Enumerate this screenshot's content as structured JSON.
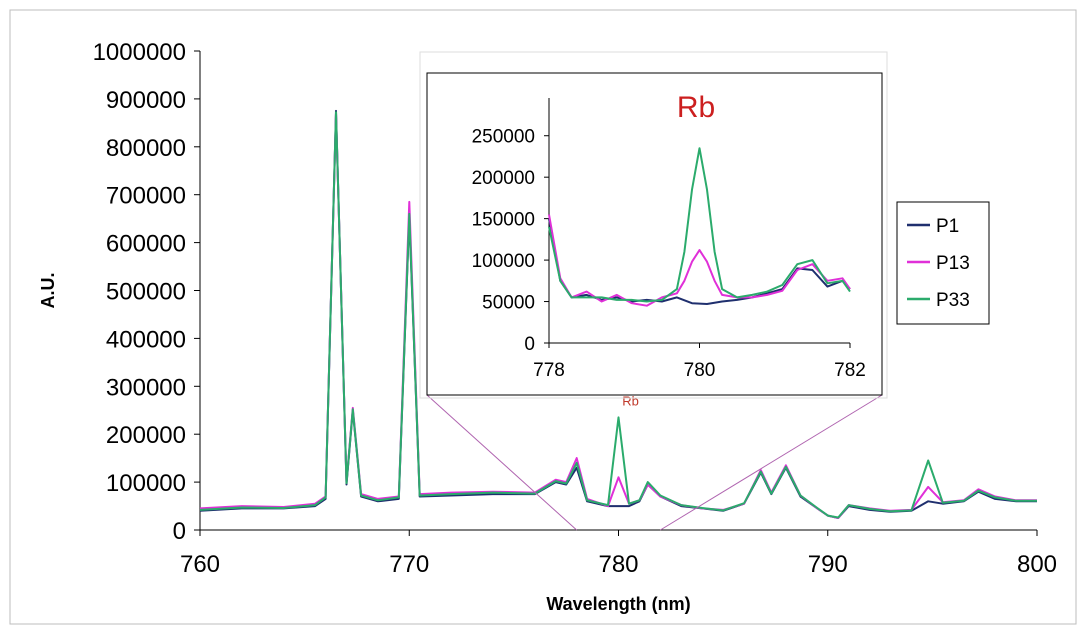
{
  "chart_data": [
    {
      "type": "line",
      "title": "",
      "xlabel": "Wavelength (nm)",
      "ylabel": "A.U.",
      "xlim": [
        760,
        800
      ],
      "ylim": [
        0,
        1000000
      ],
      "x_ticks": [
        760,
        770,
        780,
        790,
        800
      ],
      "y_ticks": [
        0,
        100000,
        200000,
        300000,
        400000,
        500000,
        600000,
        700000,
        800000,
        900000,
        1000000
      ],
      "annotation": "Rb",
      "legend": {
        "position": "right",
        "entries": [
          "P1",
          "P13",
          "P33"
        ]
      },
      "series": [
        {
          "name": "P1",
          "color": "#1f2f6e",
          "x": [
            760,
            762,
            764,
            765.5,
            766,
            766.5,
            767,
            767.3,
            767.7,
            768.5,
            769.5,
            770,
            770.5,
            772,
            774,
            776,
            777,
            777.5,
            778,
            778.5,
            779.5,
            780,
            780.5,
            781,
            781.4,
            782,
            783,
            784,
            785,
            786,
            786.8,
            787.3,
            788,
            788.7,
            789.5,
            790,
            790.5,
            791,
            792,
            793,
            794,
            794.8,
            795.5,
            796.5,
            797.2,
            798,
            799,
            800
          ],
          "values": [
            40000,
            45000,
            45000,
            50000,
            65000,
            875000,
            95000,
            250000,
            70000,
            60000,
            65000,
            655000,
            70000,
            72000,
            75000,
            75000,
            100000,
            95000,
            130000,
            60000,
            50000,
            50000,
            50000,
            60000,
            95000,
            70000,
            50000,
            45000,
            40000,
            55000,
            120000,
            75000,
            130000,
            70000,
            45000,
            30000,
            25000,
            50000,
            42000,
            38000,
            40000,
            60000,
            55000,
            60000,
            80000,
            65000,
            60000,
            60000
          ]
        },
        {
          "name": "P13",
          "color": "#e030d8",
          "x": [
            760,
            762,
            764,
            765.5,
            766,
            766.5,
            767,
            767.3,
            767.7,
            768.5,
            769.5,
            770,
            770.5,
            772,
            774,
            776,
            777,
            777.5,
            778,
            778.5,
            779.5,
            780,
            780.5,
            781,
            781.4,
            782,
            783,
            784,
            785,
            786,
            786.8,
            787.3,
            788,
            788.7,
            789.5,
            790,
            790.5,
            791,
            792,
            793,
            794,
            794.8,
            795.5,
            796.5,
            797.2,
            798,
            799,
            800
          ],
          "values": [
            45000,
            50000,
            48000,
            55000,
            70000,
            870000,
            100000,
            255000,
            75000,
            65000,
            70000,
            685000,
            75000,
            78000,
            80000,
            78000,
            105000,
            100000,
            150000,
            65000,
            50000,
            110000,
            55000,
            62000,
            95000,
            70000,
            52000,
            45000,
            42000,
            55000,
            125000,
            78000,
            135000,
            72000,
            45000,
            30000,
            25000,
            52000,
            45000,
            40000,
            42000,
            90000,
            58000,
            62000,
            85000,
            70000,
            62000,
            62000
          ]
        },
        {
          "name": "P33",
          "color": "#2bab6c",
          "x": [
            760,
            762,
            764,
            765.5,
            766,
            766.5,
            767,
            767.3,
            767.7,
            768.5,
            769.5,
            770,
            770.5,
            772,
            774,
            776,
            777,
            777.5,
            778,
            778.5,
            779.5,
            780,
            780.5,
            781,
            781.4,
            782,
            783,
            784,
            785,
            786,
            786.8,
            787.3,
            788,
            788.7,
            789.5,
            790,
            790.5,
            791,
            792,
            793,
            794,
            794.8,
            795.5,
            796.5,
            797.2,
            798,
            799,
            800
          ],
          "values": [
            42000,
            47000,
            46000,
            52000,
            68000,
            872000,
            98000,
            252000,
            72000,
            62000,
            68000,
            660000,
            72000,
            75000,
            78000,
            76000,
            102000,
            97000,
            140000,
            62000,
            52000,
            235000,
            55000,
            62000,
            100000,
            72000,
            52000,
            46000,
            41000,
            56000,
            122000,
            76000,
            132000,
            72000,
            46000,
            30000,
            26000,
            52000,
            44000,
            39000,
            41000,
            145000,
            57000,
            61000,
            82000,
            68000,
            61000,
            61000
          ]
        }
      ]
    },
    {
      "type": "line",
      "title": "Rb",
      "xlabel": "",
      "ylabel": "",
      "xlim": [
        778,
        782
      ],
      "ylim": [
        0,
        275000
      ],
      "x_ticks": [
        778,
        780,
        782
      ],
      "y_ticks": [
        0,
        50000,
        100000,
        150000,
        200000,
        250000
      ],
      "series": [
        {
          "name": "P1",
          "color": "#1f2f6e",
          "x": [
            778,
            778.15,
            778.3,
            778.5,
            778.7,
            778.9,
            779.1,
            779.3,
            779.5,
            779.7,
            779.9,
            780.1,
            780.3,
            780.5,
            780.7,
            780.9,
            781.1,
            781.3,
            781.5,
            781.7,
            781.9,
            782
          ],
          "values": [
            150000,
            75000,
            55000,
            58000,
            52000,
            55000,
            50000,
            52000,
            50000,
            55000,
            48000,
            47000,
            50000,
            52000,
            55000,
            60000,
            65000,
            90000,
            88000,
            68000,
            75000,
            65000
          ]
        },
        {
          "name": "P13",
          "color": "#e030d8",
          "x": [
            778,
            778.15,
            778.3,
            778.5,
            778.7,
            778.9,
            779.1,
            779.3,
            779.5,
            779.7,
            779.8,
            779.9,
            780,
            780.1,
            780.2,
            780.3,
            780.5,
            780.7,
            780.9,
            781.1,
            781.3,
            781.5,
            781.7,
            781.9,
            782
          ],
          "values": [
            155000,
            78000,
            55000,
            62000,
            50000,
            58000,
            48000,
            45000,
            55000,
            60000,
            75000,
            98000,
            112000,
            98000,
            75000,
            58000,
            55000,
            55000,
            58000,
            63000,
            88000,
            95000,
            75000,
            78000,
            65000
          ]
        },
        {
          "name": "P33",
          "color": "#2bab6c",
          "x": [
            778,
            778.15,
            778.3,
            778.5,
            778.7,
            778.9,
            779.1,
            779.3,
            779.5,
            779.7,
            779.8,
            779.9,
            780,
            780.1,
            780.2,
            780.3,
            780.5,
            780.7,
            780.9,
            781.1,
            781.3,
            781.5,
            781.7,
            781.9,
            782
          ],
          "values": [
            140000,
            75000,
            55000,
            55000,
            55000,
            52000,
            52000,
            50000,
            52000,
            65000,
            110000,
            185000,
            235000,
            185000,
            110000,
            65000,
            55000,
            58000,
            62000,
            70000,
            95000,
            100000,
            72000,
            75000,
            62000
          ]
        }
      ]
    }
  ]
}
